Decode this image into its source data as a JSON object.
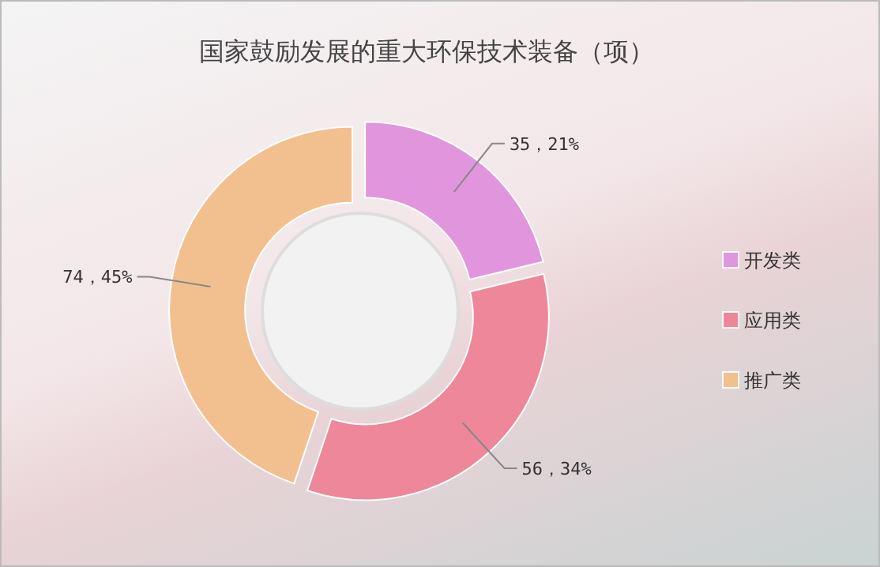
{
  "chart_data": {
    "type": "donut",
    "title": "国家鼓励发展的重大环保技术装备（项）",
    "categories": [
      "开发类",
      "应用类",
      "推广类"
    ],
    "values": [
      35,
      56,
      74
    ],
    "colors": [
      "#e095dc",
      "#ee8799",
      "#f2c08f"
    ],
    "value_labels": [
      "35，21%",
      "56，34%",
      "74，45%"
    ],
    "legend": "right"
  }
}
